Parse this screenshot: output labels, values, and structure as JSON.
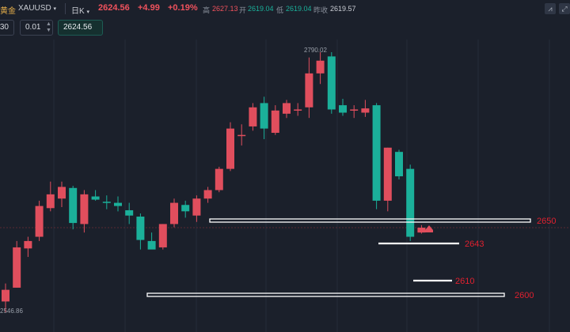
{
  "header": {
    "name": "黄金",
    "symbol": "XAUUSD",
    "timeframe": "日K",
    "last": "2624.56",
    "change": "+4.99",
    "change_pct": "+0.19%",
    "high_label": "高",
    "high": "2627.13",
    "open_label": "开",
    "open": "2619.04",
    "low_label": "低",
    "low": "2619.04",
    "prev_close_label": "昨收",
    "prev_close": "2619.57"
  },
  "toolbar": {
    "field1": "30",
    "step": "0.01",
    "price": "2624.56"
  },
  "chart": {
    "peak_label": "2790.02",
    "min_label": "2546.86",
    "levels": [
      {
        "label": "2650"
      },
      {
        "label": "2643"
      },
      {
        "label": "2610"
      },
      {
        "label": "2600"
      }
    ]
  },
  "colors": {
    "up": "#e04e5d",
    "down": "#1bb09a",
    "level_text": "#e0202f",
    "background": "#1b202b"
  },
  "chart_data": {
    "type": "candlestick",
    "series": [
      {
        "open": 2555,
        "high": 2572,
        "low": 2545,
        "close": 2566
      },
      {
        "open": 2568,
        "high": 2612,
        "low": 2568,
        "close": 2606
      },
      {
        "open": 2605,
        "high": 2616,
        "low": 2597,
        "close": 2612
      },
      {
        "open": 2616,
        "high": 2650,
        "low": 2612,
        "close": 2645
      },
      {
        "open": 2643,
        "high": 2668,
        "low": 2640,
        "close": 2656
      },
      {
        "open": 2652,
        "high": 2668,
        "low": 2644,
        "close": 2663
      },
      {
        "open": 2662,
        "high": 2664,
        "low": 2623,
        "close": 2629
      },
      {
        "open": 2628,
        "high": 2660,
        "low": 2620,
        "close": 2656
      },
      {
        "open": 2654,
        "high": 2660,
        "low": 2650,
        "close": 2651
      },
      {
        "open": 2649,
        "high": 2655,
        "low": 2642,
        "close": 2648
      },
      {
        "open": 2648,
        "high": 2654,
        "low": 2640,
        "close": 2645
      },
      {
        "open": 2641,
        "high": 2648,
        "low": 2628,
        "close": 2636
      },
      {
        "open": 2635,
        "high": 2638,
        "low": 2604,
        "close": 2613
      },
      {
        "open": 2612,
        "high": 2620,
        "low": 2605,
        "close": 2604
      },
      {
        "open": 2606,
        "high": 2628,
        "low": 2604,
        "close": 2628
      },
      {
        "open": 2628,
        "high": 2652,
        "low": 2625,
        "close": 2648
      },
      {
        "open": 2646,
        "high": 2650,
        "low": 2634,
        "close": 2640
      },
      {
        "open": 2636,
        "high": 2655,
        "low": 2630,
        "close": 2652
      },
      {
        "open": 2652,
        "high": 2663,
        "low": 2648,
        "close": 2660
      },
      {
        "open": 2660,
        "high": 2682,
        "low": 2658,
        "close": 2680
      },
      {
        "open": 2680,
        "high": 2724,
        "low": 2678,
        "close": 2718
      },
      {
        "open": 2712,
        "high": 2722,
        "low": 2702,
        "close": 2712
      },
      {
        "open": 2720,
        "high": 2742,
        "low": 2716,
        "close": 2738
      },
      {
        "open": 2742,
        "high": 2748,
        "low": 2708,
        "close": 2718
      },
      {
        "open": 2714,
        "high": 2740,
        "low": 2712,
        "close": 2735
      },
      {
        "open": 2732,
        "high": 2745,
        "low": 2728,
        "close": 2742
      },
      {
        "open": 2735,
        "high": 2742,
        "low": 2730,
        "close": 2736
      },
      {
        "open": 2738,
        "high": 2785,
        "low": 2728,
        "close": 2770
      },
      {
        "open": 2770,
        "high": 2790,
        "low": 2760,
        "close": 2782
      },
      {
        "open": 2786,
        "high": 2790,
        "low": 2732,
        "close": 2736
      },
      {
        "open": 2740,
        "high": 2746,
        "low": 2730,
        "close": 2733
      },
      {
        "open": 2736,
        "high": 2740,
        "low": 2728,
        "close": 2736
      },
      {
        "open": 2733,
        "high": 2745,
        "low": 2729,
        "close": 2737
      },
      {
        "open": 2740,
        "high": 2742,
        "low": 2642,
        "close": 2650
      },
      {
        "open": 2650,
        "high": 2700,
        "low": 2640,
        "close": 2700
      },
      {
        "open": 2696,
        "high": 2698,
        "low": 2670,
        "close": 2673
      },
      {
        "open": 2680,
        "high": 2684,
        "low": 2612,
        "close": 2616
      },
      {
        "open": 2620,
        "high": 2627,
        "low": 2619,
        "close": 2624.56
      }
    ]
  }
}
